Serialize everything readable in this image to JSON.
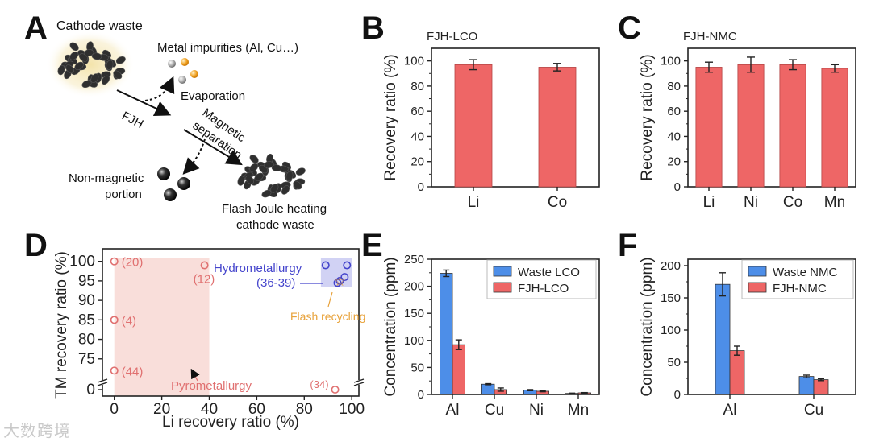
{
  "panel_labels": {
    "a": "A",
    "b": "B",
    "c": "C",
    "d": "D",
    "e": "E",
    "f": "F"
  },
  "schematic": {
    "cathode_waste": "Cathode waste",
    "metal_impurities": "Metal impurities (Al, Cu…)",
    "evaporation": "Evaporation",
    "fjh": "FJH",
    "magnetic": "Magnetic",
    "separation": "separation",
    "non_magnetic_1": "Non-magnetic",
    "non_magnetic_2": "portion",
    "flash_1": "Flash Joule heating",
    "flash_2": "cathode waste"
  },
  "watermark": "大数跨境",
  "chart_data": [
    {
      "id": "B",
      "type": "bar",
      "title": "FJH-LCO",
      "categories": [
        "Li",
        "Co"
      ],
      "values": [
        97,
        95
      ],
      "errors": [
        4,
        3
      ],
      "ylabel": "Recovery ratio (%)",
      "ylim": [
        0,
        110
      ],
      "yticks": [
        0,
        20,
        40,
        60,
        80,
        100
      ],
      "color": "#ee6666"
    },
    {
      "id": "C",
      "type": "bar",
      "title": "FJH-NMC",
      "categories": [
        "Li",
        "Ni",
        "Co",
        "Mn"
      ],
      "values": [
        95,
        97,
        97,
        94
      ],
      "errors": [
        4,
        6,
        4,
        3
      ],
      "ylabel": "Recovery ratio (%)",
      "ylim": [
        0,
        110
      ],
      "yticks": [
        0,
        20,
        40,
        60,
        80,
        100
      ],
      "color": "#ee6666"
    },
    {
      "id": "D",
      "type": "scatter",
      "xlabel": "Li recovery ratio (%)",
      "ylabel": "TM recovery ratio (%)",
      "xlim": [
        -5,
        103
      ],
      "xticks": [
        0,
        20,
        40,
        60,
        80,
        100
      ],
      "yticks": [
        0,
        75,
        80,
        85,
        90,
        95,
        100
      ],
      "ybreak": true,
      "regions": [
        {
          "name": "Pyrometallurgy",
          "x0": 0,
          "x1": 40,
          "y0": 0,
          "y1": 100,
          "color": "#f8d8d3"
        },
        {
          "name": "Hydrometallurgy",
          "x0": 87,
          "x1": 100,
          "y0": 93.5,
          "y1": 100,
          "color": "#c9caf2"
        }
      ],
      "points": [
        {
          "x": 0,
          "y": 100,
          "label": "(20)",
          "group": "pyro"
        },
        {
          "x": 38,
          "y": 99,
          "label": "(12)",
          "group": "pyro"
        },
        {
          "x": 0,
          "y": 85,
          "label": "(4)",
          "group": "pyro"
        },
        {
          "x": 0,
          "y": 72,
          "label": "(44)",
          "group": "pyro"
        },
        {
          "x": 93,
          "y": 0,
          "label": "(34)",
          "group": "pyro"
        },
        {
          "x": 89,
          "y": 99,
          "label": "",
          "group": "hydro"
        },
        {
          "x": 98,
          "y": 99,
          "label": "",
          "group": "hydro"
        },
        {
          "x": 97,
          "y": 96,
          "label": "",
          "group": "hydro"
        },
        {
          "x": 95,
          "y": 95,
          "label": "",
          "group": "hydro"
        },
        {
          "x": 94,
          "y": 94.5,
          "label": "",
          "group": "hydro"
        },
        {
          "x": 95,
          "y": 95,
          "label": "",
          "group": "flash"
        }
      ],
      "annotations": {
        "pyro": "Pyrometallurgy",
        "hydro": "Hydrometallurgy",
        "hydro_ref": "(36-39)",
        "flash": "Flash recycling"
      },
      "colors": {
        "pyro": "#e07070",
        "hydro": "#4444cc",
        "flash": "#e8a23a"
      }
    },
    {
      "id": "E",
      "type": "bar",
      "categories": [
        "Al",
        "Cu",
        "Ni",
        "Mn"
      ],
      "series": [
        {
          "name": "Waste LCO",
          "values": [
            224,
            19,
            8,
            2
          ],
          "errors": [
            6,
            1,
            1,
            0.5
          ],
          "color": "#4d8ee8"
        },
        {
          "name": "FJH-LCO",
          "values": [
            92,
            9,
            6,
            3
          ],
          "errors": [
            9,
            3,
            1,
            0.5
          ],
          "color": "#ee6666"
        }
      ],
      "ylabel": "Concentration (ppm)",
      "ylim": [
        0,
        250
      ],
      "yticks": [
        0,
        50,
        100,
        150,
        200,
        250
      ],
      "legend": "top-right"
    },
    {
      "id": "F",
      "type": "bar",
      "categories": [
        "Al",
        "Cu"
      ],
      "series": [
        {
          "name": "Waste NMC",
          "values": [
            171,
            28
          ],
          "errors": [
            18,
            2
          ],
          "color": "#4d8ee8"
        },
        {
          "name": "FJH-NMC",
          "values": [
            68,
            23
          ],
          "errors": [
            7,
            1.5
          ],
          "color": "#ee6666"
        }
      ],
      "ylabel": "Concentration (ppm)",
      "ylim": [
        0,
        210
      ],
      "yticks": [
        0,
        50,
        100,
        150,
        200
      ],
      "legend": "top-right"
    }
  ]
}
